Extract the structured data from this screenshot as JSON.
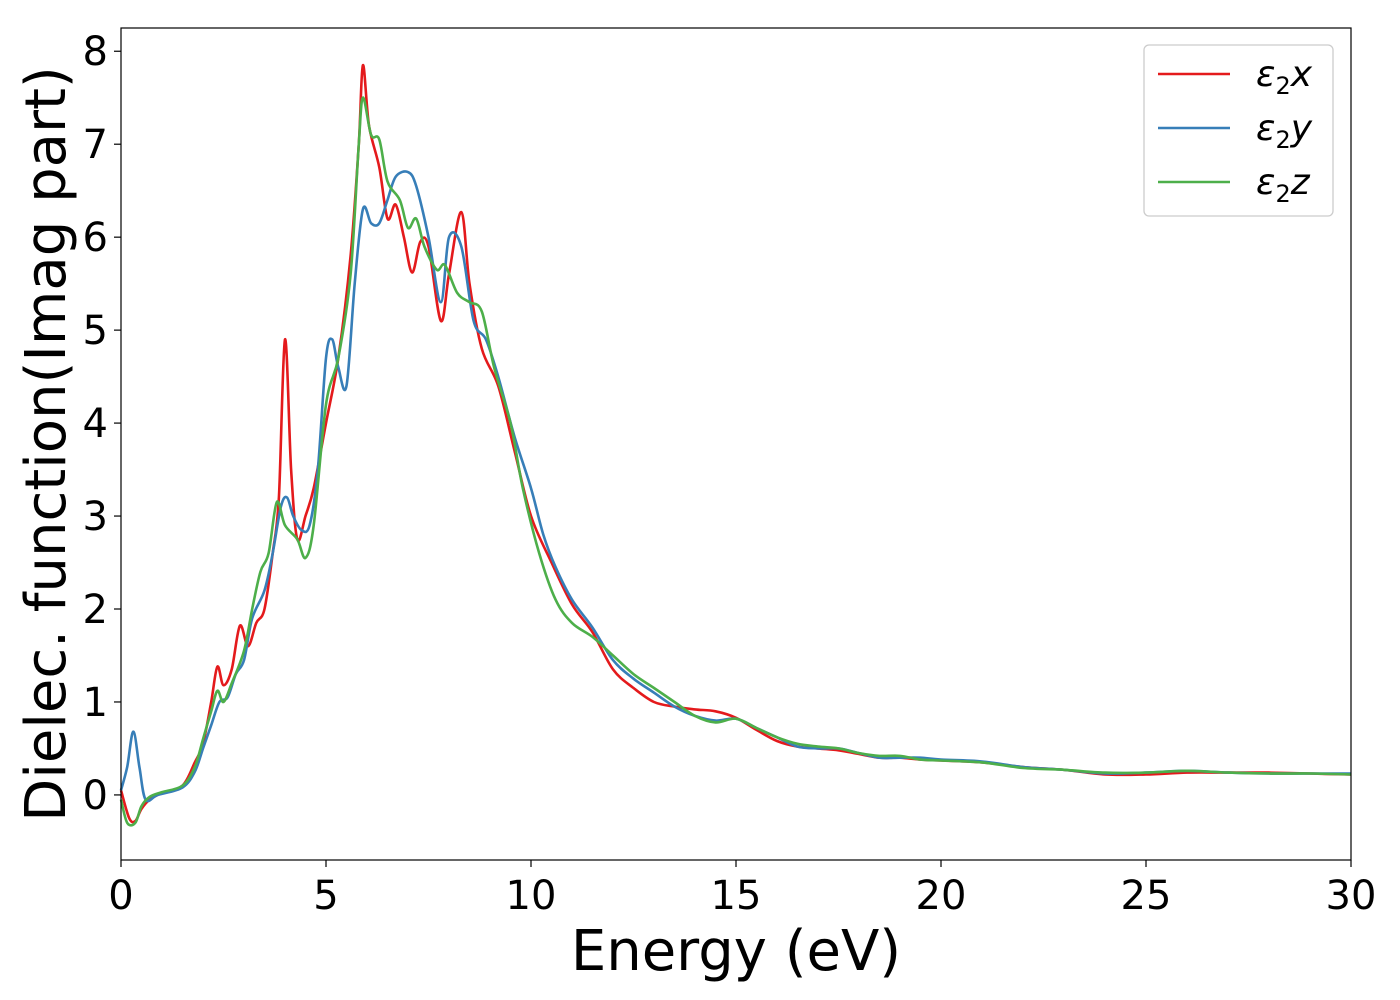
{
  "chart_data": {
    "type": "line",
    "title": "",
    "xlabel": "Energy (eV)",
    "ylabel": "Dielec. function(Imag part)",
    "xlim": [
      0,
      30
    ],
    "ylim": [
      -0.7,
      8.25
    ],
    "xticks": [
      0,
      5,
      10,
      15,
      20,
      25,
      30
    ],
    "yticks": [
      0,
      1,
      2,
      3,
      4,
      5,
      6,
      7,
      8
    ],
    "grid": false,
    "legend_position": "top-right",
    "series": [
      {
        "name": "ε₂x",
        "legend": {
          "symbol": "ε",
          "sub": "2",
          "var": "x"
        },
        "color": "#e41a1c",
        "points": [
          [
            0.0,
            0.05
          ],
          [
            0.2,
            -0.25
          ],
          [
            0.35,
            -0.28
          ],
          [
            0.5,
            -0.15
          ],
          [
            0.7,
            -0.05
          ],
          [
            1.0,
            0.02
          ],
          [
            1.5,
            0.1
          ],
          [
            1.8,
            0.35
          ],
          [
            2.0,
            0.55
          ],
          [
            2.2,
            1.0
          ],
          [
            2.35,
            1.38
          ],
          [
            2.5,
            1.18
          ],
          [
            2.7,
            1.35
          ],
          [
            2.9,
            1.82
          ],
          [
            3.1,
            1.6
          ],
          [
            3.3,
            1.85
          ],
          [
            3.5,
            2.0
          ],
          [
            3.7,
            2.6
          ],
          [
            3.85,
            3.2
          ],
          [
            4.0,
            4.9
          ],
          [
            4.15,
            3.5
          ],
          [
            4.3,
            2.75
          ],
          [
            4.5,
            3.0
          ],
          [
            4.7,
            3.3
          ],
          [
            5.0,
            4.0
          ],
          [
            5.3,
            4.7
          ],
          [
            5.6,
            5.8
          ],
          [
            5.8,
            7.0
          ],
          [
            5.9,
            7.85
          ],
          [
            6.05,
            7.2
          ],
          [
            6.3,
            6.75
          ],
          [
            6.5,
            6.2
          ],
          [
            6.7,
            6.35
          ],
          [
            6.9,
            6.0
          ],
          [
            7.1,
            5.62
          ],
          [
            7.3,
            5.95
          ],
          [
            7.5,
            5.9
          ],
          [
            7.8,
            5.1
          ],
          [
            8.0,
            5.6
          ],
          [
            8.3,
            6.27
          ],
          [
            8.5,
            5.5
          ],
          [
            8.8,
            4.8
          ],
          [
            9.2,
            4.4
          ],
          [
            9.6,
            3.7
          ],
          [
            10.0,
            3.0
          ],
          [
            10.5,
            2.5
          ],
          [
            11.0,
            2.05
          ],
          [
            11.5,
            1.75
          ],
          [
            12.0,
            1.35
          ],
          [
            12.5,
            1.15
          ],
          [
            13.0,
            1.0
          ],
          [
            13.5,
            0.95
          ],
          [
            14.0,
            0.92
          ],
          [
            14.5,
            0.9
          ],
          [
            15.0,
            0.83
          ],
          [
            15.5,
            0.7
          ],
          [
            16.0,
            0.58
          ],
          [
            16.5,
            0.52
          ],
          [
            17.0,
            0.5
          ],
          [
            17.5,
            0.48
          ],
          [
            18.0,
            0.44
          ],
          [
            18.5,
            0.4
          ],
          [
            19.0,
            0.4
          ],
          [
            19.5,
            0.38
          ],
          [
            20.0,
            0.37
          ],
          [
            21.0,
            0.35
          ],
          [
            22.0,
            0.3
          ],
          [
            23.0,
            0.27
          ],
          [
            24.0,
            0.22
          ],
          [
            25.0,
            0.22
          ],
          [
            26.0,
            0.24
          ],
          [
            27.0,
            0.24
          ],
          [
            28.0,
            0.24
          ],
          [
            29.0,
            0.23
          ],
          [
            30.0,
            0.22
          ]
        ]
      },
      {
        "name": "ε₂y",
        "legend": {
          "symbol": "ε",
          "sub": "2",
          "var": "y"
        },
        "color": "#377eb8",
        "points": [
          [
            0.0,
            0.05
          ],
          [
            0.15,
            0.3
          ],
          [
            0.3,
            0.68
          ],
          [
            0.45,
            0.3
          ],
          [
            0.6,
            -0.05
          ],
          [
            0.9,
            0.0
          ],
          [
            1.5,
            0.08
          ],
          [
            1.8,
            0.25
          ],
          [
            2.0,
            0.5
          ],
          [
            2.2,
            0.75
          ],
          [
            2.4,
            1.0
          ],
          [
            2.6,
            1.05
          ],
          [
            2.8,
            1.3
          ],
          [
            3.0,
            1.45
          ],
          [
            3.2,
            1.9
          ],
          [
            3.5,
            2.2
          ],
          [
            3.7,
            2.6
          ],
          [
            3.9,
            3.1
          ],
          [
            4.05,
            3.2
          ],
          [
            4.2,
            3.0
          ],
          [
            4.4,
            2.85
          ],
          [
            4.6,
            2.9
          ],
          [
            4.8,
            3.5
          ],
          [
            5.0,
            4.7
          ],
          [
            5.15,
            4.9
          ],
          [
            5.3,
            4.6
          ],
          [
            5.5,
            4.4
          ],
          [
            5.7,
            5.5
          ],
          [
            5.9,
            6.3
          ],
          [
            6.1,
            6.15
          ],
          [
            6.3,
            6.15
          ],
          [
            6.5,
            6.4
          ],
          [
            6.7,
            6.65
          ],
          [
            7.0,
            6.7
          ],
          [
            7.2,
            6.55
          ],
          [
            7.5,
            6.0
          ],
          [
            7.8,
            5.3
          ],
          [
            8.0,
            6.0
          ],
          [
            8.3,
            5.9
          ],
          [
            8.6,
            5.1
          ],
          [
            8.9,
            4.9
          ],
          [
            9.2,
            4.5
          ],
          [
            9.6,
            3.85
          ],
          [
            10.0,
            3.3
          ],
          [
            10.3,
            2.8
          ],
          [
            10.6,
            2.45
          ],
          [
            11.0,
            2.1
          ],
          [
            11.5,
            1.8
          ],
          [
            12.0,
            1.45
          ],
          [
            12.5,
            1.25
          ],
          [
            13.0,
            1.1
          ],
          [
            13.5,
            0.95
          ],
          [
            14.0,
            0.85
          ],
          [
            14.5,
            0.8
          ],
          [
            15.0,
            0.82
          ],
          [
            15.5,
            0.72
          ],
          [
            16.0,
            0.62
          ],
          [
            16.5,
            0.52
          ],
          [
            17.0,
            0.5
          ],
          [
            17.5,
            0.5
          ],
          [
            18.0,
            0.45
          ],
          [
            18.5,
            0.4
          ],
          [
            19.0,
            0.4
          ],
          [
            19.5,
            0.4
          ],
          [
            20.0,
            0.38
          ],
          [
            21.0,
            0.36
          ],
          [
            22.0,
            0.3
          ],
          [
            23.0,
            0.27
          ],
          [
            24.0,
            0.23
          ],
          [
            25.0,
            0.24
          ],
          [
            26.0,
            0.26
          ],
          [
            27.0,
            0.24
          ],
          [
            28.0,
            0.23
          ],
          [
            29.0,
            0.23
          ],
          [
            30.0,
            0.23
          ]
        ]
      },
      {
        "name": "ε₂z",
        "legend": {
          "symbol": "ε",
          "sub": "2",
          "var": "z"
        },
        "color": "#4daf4a",
        "points": [
          [
            0.0,
            -0.05
          ],
          [
            0.15,
            -0.3
          ],
          [
            0.35,
            -0.3
          ],
          [
            0.5,
            -0.12
          ],
          [
            0.7,
            -0.02
          ],
          [
            1.0,
            0.03
          ],
          [
            1.5,
            0.1
          ],
          [
            1.8,
            0.3
          ],
          [
            2.0,
            0.6
          ],
          [
            2.2,
            0.9
          ],
          [
            2.35,
            1.12
          ],
          [
            2.5,
            1.0
          ],
          [
            2.7,
            1.2
          ],
          [
            3.0,
            1.55
          ],
          [
            3.2,
            2.0
          ],
          [
            3.4,
            2.4
          ],
          [
            3.6,
            2.6
          ],
          [
            3.8,
            3.15
          ],
          [
            4.0,
            2.9
          ],
          [
            4.3,
            2.75
          ],
          [
            4.5,
            2.55
          ],
          [
            4.7,
            2.9
          ],
          [
            5.0,
            4.2
          ],
          [
            5.3,
            4.7
          ],
          [
            5.6,
            5.6
          ],
          [
            5.8,
            7.0
          ],
          [
            5.9,
            7.5
          ],
          [
            6.1,
            7.1
          ],
          [
            6.3,
            7.05
          ],
          [
            6.5,
            6.6
          ],
          [
            6.8,
            6.4
          ],
          [
            7.0,
            6.1
          ],
          [
            7.2,
            6.2
          ],
          [
            7.4,
            5.9
          ],
          [
            7.7,
            5.65
          ],
          [
            7.9,
            5.7
          ],
          [
            8.2,
            5.4
          ],
          [
            8.5,
            5.3
          ],
          [
            8.8,
            5.2
          ],
          [
            9.1,
            4.6
          ],
          [
            9.5,
            4.0
          ],
          [
            9.8,
            3.3
          ],
          [
            10.2,
            2.6
          ],
          [
            10.6,
            2.1
          ],
          [
            11.0,
            1.85
          ],
          [
            11.5,
            1.7
          ],
          [
            12.0,
            1.5
          ],
          [
            12.5,
            1.3
          ],
          [
            13.0,
            1.15
          ],
          [
            13.5,
            1.0
          ],
          [
            14.0,
            0.85
          ],
          [
            14.5,
            0.78
          ],
          [
            15.0,
            0.82
          ],
          [
            15.5,
            0.72
          ],
          [
            16.0,
            0.62
          ],
          [
            16.5,
            0.55
          ],
          [
            17.0,
            0.52
          ],
          [
            17.5,
            0.5
          ],
          [
            18.0,
            0.45
          ],
          [
            18.5,
            0.42
          ],
          [
            19.0,
            0.42
          ],
          [
            19.5,
            0.38
          ],
          [
            20.0,
            0.37
          ],
          [
            21.0,
            0.35
          ],
          [
            22.0,
            0.29
          ],
          [
            23.0,
            0.27
          ],
          [
            24.0,
            0.24
          ],
          [
            25.0,
            0.24
          ],
          [
            26.0,
            0.26
          ],
          [
            27.0,
            0.24
          ],
          [
            28.0,
            0.23
          ],
          [
            29.0,
            0.23
          ],
          [
            30.0,
            0.22
          ]
        ]
      }
    ]
  }
}
